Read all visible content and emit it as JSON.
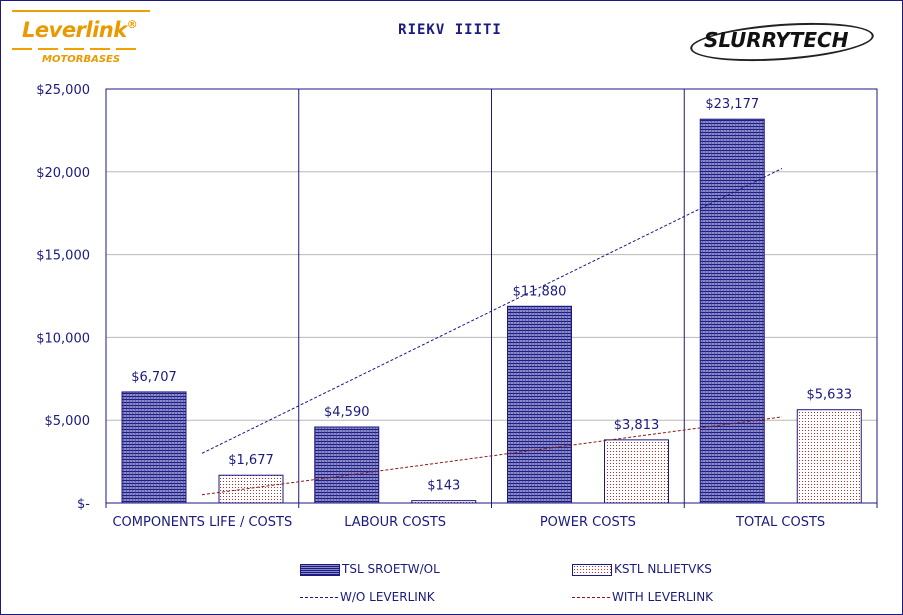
{
  "header": {
    "logo_left_brand": "Leverlink",
    "logo_left_reg": "®",
    "logo_left_sub": "MOTORBASES",
    "title": "RIEKV IIITI",
    "logo_right": "SLURRYTECH"
  },
  "colors": {
    "axis_text": "#1a1a80",
    "bar_primary": "#1a1a80",
    "bar_secondary_dot": "#b03030",
    "trend_without": "#1a1a80",
    "trend_with": "#8a1a1a",
    "logo_orange": "#e89a00"
  },
  "chart_data": {
    "type": "bar",
    "categories": [
      "COMPONENTS LIFE / COSTS",
      "LABOUR COSTS",
      "POWER COSTS",
      "TOTAL COSTS"
    ],
    "series": [
      {
        "name": "TSL SROETW/OL",
        "values": [
          6707,
          4590,
          11880,
          23177
        ],
        "labels": [
          "$6,707",
          "$4,590",
          "$11,880",
          "$23,177"
        ]
      },
      {
        "name": "KSTL NLLIETVKS",
        "values": [
          1677,
          143,
          3813,
          5633
        ],
        "labels": [
          "$1,677",
          "$143",
          "$3,813",
          "$5,633"
        ]
      }
    ],
    "trendlines": [
      {
        "name": "W/O LEVERLINK",
        "from": 3000,
        "to": 20200
      },
      {
        "name": "WITH LEVERLINK",
        "from": 500,
        "to": 5200
      }
    ],
    "yticks": [
      0,
      5000,
      10000,
      15000,
      20000,
      25000
    ],
    "ytick_labels": [
      "$-",
      "$5,000",
      "$10,000",
      "$15,000",
      "$20,000",
      "$25,000"
    ],
    "ylim": [
      0,
      25000
    ],
    "grid": true,
    "legend_position": "bottom"
  },
  "legend": {
    "item1": "TSL SROETW/OL",
    "item2": "KSTL NLLIETVKS",
    "item3": "W/O LEVERLINK",
    "item4": "WITH LEVERLINK"
  }
}
